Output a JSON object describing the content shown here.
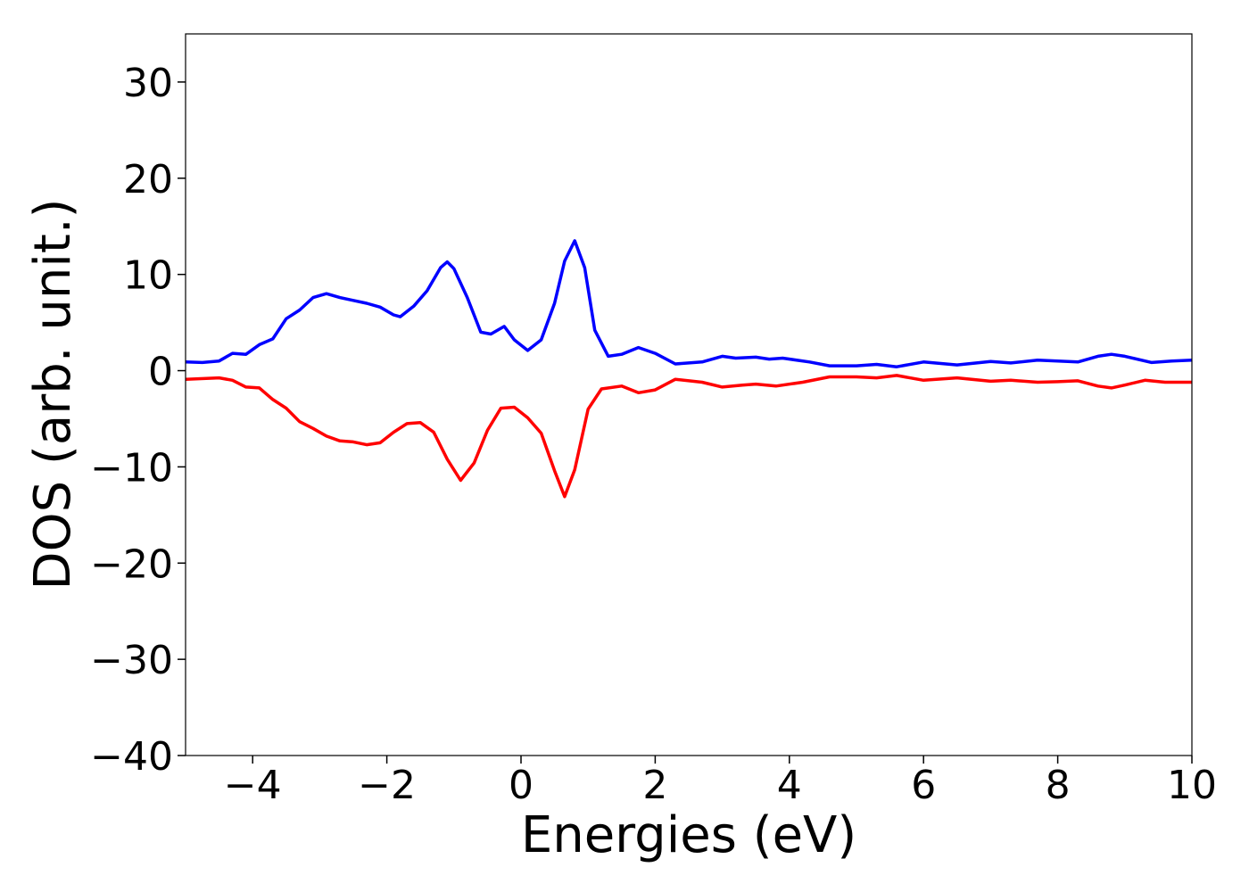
{
  "chart_data": {
    "type": "line",
    "xlabel": "Energies (eV)",
    "ylabel": "DOS (arb. unit.)",
    "xlim": [
      -5,
      10
    ],
    "xticks": [
      {
        "value": -4,
        "label": "−4"
      },
      {
        "value": -2,
        "label": "−2"
      },
      0,
      2,
      4,
      6,
      8,
      10
    ],
    "ylim": [
      -40,
      35
    ],
    "yticks": [
      {
        "value": -40,
        "label": "−40"
      },
      {
        "value": -30,
        "label": "−30"
      },
      {
        "value": -20,
        "label": "−20"
      },
      {
        "value": -10,
        "label": "−10"
      },
      0,
      10,
      20,
      30
    ],
    "series": [
      {
        "color": "#0000ff",
        "x": [
          -5,
          -4.75,
          -4.5,
          -4.3,
          -4.1,
          -3.9,
          -3.7,
          -3.5,
          -3.3,
          -3.1,
          -2.9,
          -2.7,
          -2.5,
          -2.3,
          -2.1,
          -1.9,
          -1.8,
          -1.6,
          -1.4,
          -1.2,
          -1.1,
          -1.0,
          -0.8,
          -0.6,
          -0.45,
          -0.25,
          -0.1,
          0.1,
          0.3,
          0.5,
          0.65,
          0.8,
          0.95,
          1.1,
          1.3,
          1.5,
          1.75,
          2.0,
          2.3,
          2.7,
          3.0,
          3.2,
          3.5,
          3.7,
          3.9,
          4.3,
          4.6,
          5.0,
          5.3,
          5.6,
          6.0,
          6.5,
          7.0,
          7.3,
          7.7,
          8.0,
          8.3,
          8.6,
          8.8,
          9.0,
          9.4,
          9.7,
          10
        ],
        "values": [
          0.9,
          0.85,
          1.0,
          1.8,
          1.7,
          2.7,
          3.3,
          5.4,
          6.3,
          7.6,
          8.0,
          7.6,
          7.3,
          7.0,
          6.6,
          5.8,
          5.6,
          6.7,
          8.3,
          10.7,
          11.3,
          10.6,
          7.6,
          4.0,
          3.8,
          4.6,
          3.2,
          2.1,
          3.2,
          7.0,
          11.4,
          13.5,
          10.7,
          4.2,
          1.5,
          1.7,
          2.4,
          1.8,
          0.7,
          0.9,
          1.5,
          1.3,
          1.4,
          1.2,
          1.3,
          0.9,
          0.5,
          0.5,
          0.65,
          0.4,
          0.9,
          0.6,
          0.95,
          0.8,
          1.1,
          1.0,
          0.9,
          1.5,
          1.7,
          1.5,
          0.85,
          1.0,
          1.1
        ]
      },
      {
        "color": "#ff0000",
        "x": [
          -5,
          -4.5,
          -4.3,
          -4.1,
          -3.9,
          -3.7,
          -3.5,
          -3.3,
          -3.1,
          -2.9,
          -2.7,
          -2.5,
          -2.3,
          -2.1,
          -1.9,
          -1.7,
          -1.5,
          -1.3,
          -1.1,
          -0.9,
          -0.7,
          -0.5,
          -0.3,
          -0.1,
          0.1,
          0.3,
          0.5,
          0.65,
          0.8,
          1.0,
          1.2,
          1.5,
          1.75,
          2.0,
          2.3,
          2.7,
          3.0,
          3.3,
          3.5,
          3.8,
          4.2,
          4.6,
          5.0,
          5.3,
          5.6,
          6.0,
          6.5,
          7.0,
          7.3,
          7.7,
          8.0,
          8.3,
          8.6,
          8.8,
          9.0,
          9.3,
          9.6,
          10
        ],
        "values": [
          -0.9,
          -0.75,
          -1.0,
          -1.7,
          -1.8,
          -3.0,
          -3.9,
          -5.3,
          -6.0,
          -6.8,
          -7.3,
          -7.4,
          -7.7,
          -7.5,
          -6.4,
          -5.5,
          -5.4,
          -6.4,
          -9.2,
          -11.4,
          -9.6,
          -6.2,
          -3.9,
          -3.8,
          -4.9,
          -6.5,
          -10.4,
          -13.1,
          -10.3,
          -4.0,
          -1.9,
          -1.6,
          -2.3,
          -2.0,
          -0.9,
          -1.2,
          -1.7,
          -1.5,
          -1.4,
          -1.6,
          -1.2,
          -0.65,
          -0.65,
          -0.75,
          -0.5,
          -1.0,
          -0.75,
          -1.1,
          -1.0,
          -1.2,
          -1.15,
          -1.05,
          -1.6,
          -1.8,
          -1.5,
          -1.0,
          -1.2,
          -1.2
        ]
      }
    ]
  }
}
